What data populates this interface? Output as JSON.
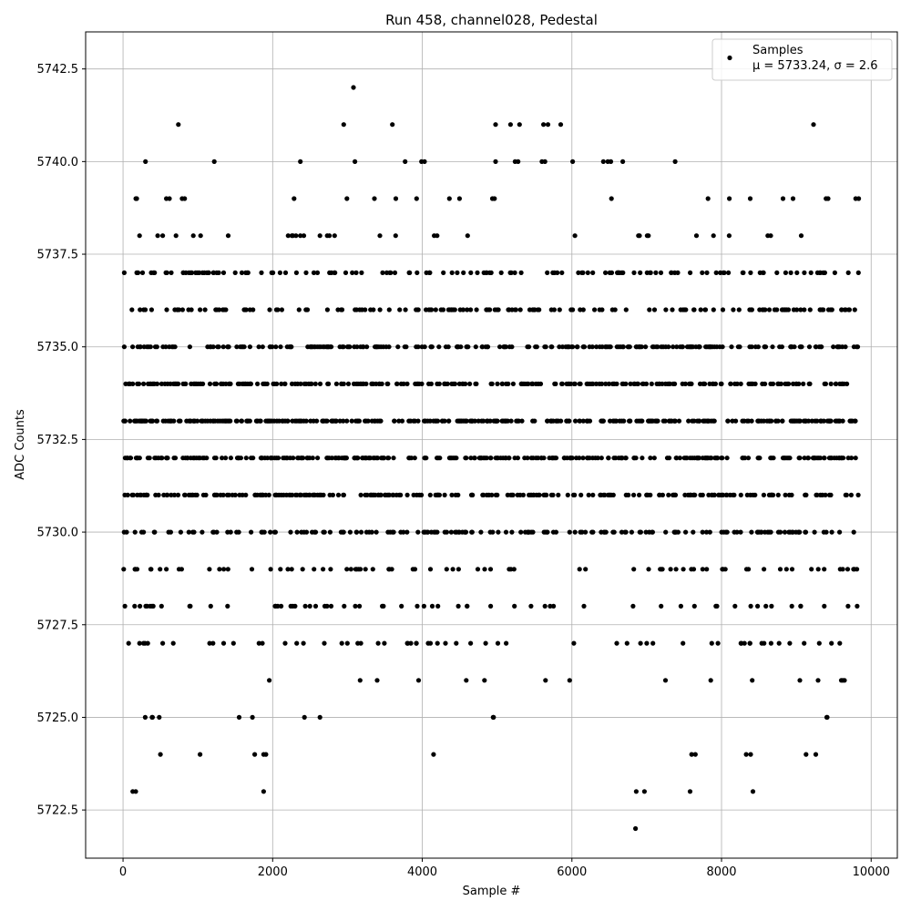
{
  "chart_data": {
    "type": "scatter",
    "title": "Run 458, channel028, Pedestal",
    "xlabel": "Sample #",
    "ylabel": "ADC Counts",
    "xlim": [
      -500,
      10350
    ],
    "ylim": [
      5721.2,
      5743.5
    ],
    "xticks": [
      0,
      2000,
      4000,
      6000,
      8000,
      10000
    ],
    "xtick_labels": [
      "0",
      "2000",
      "4000",
      "6000",
      "8000",
      "10000"
    ],
    "yticks": [
      5722.5,
      5725.0,
      5727.5,
      5730.0,
      5732.5,
      5735.0,
      5737.5,
      5740.0,
      5742.5
    ],
    "ytick_labels": [
      "5722.5",
      "5725.0",
      "5727.5",
      "5730.0",
      "5732.5",
      "5735.0",
      "5737.5",
      "5740.0",
      "5742.5"
    ],
    "grid": true,
    "legend": {
      "position": "top-right",
      "series_label": "Samples",
      "stats_label": "μ = 5733.24, σ = 2.6"
    },
    "series": [
      {
        "name": "Samples",
        "color": "#000000",
        "x_range": [
          0,
          9830
        ],
        "n_samples": 9831,
        "mean": 5733.24,
        "sigma": 2.6,
        "points": [
          [
            3080,
            5742
          ],
          [
            740,
            5741
          ],
          [
            2950,
            5741
          ],
          [
            3600,
            5741
          ],
          [
            4980,
            5741
          ],
          [
            5180,
            5741
          ],
          [
            5300,
            5741
          ],
          [
            5620,
            5741
          ],
          [
            5680,
            5741
          ],
          [
            5850,
            5741
          ],
          [
            9230,
            5741
          ],
          [
            300,
            5740
          ],
          [
            1220,
            5740
          ],
          [
            2370,
            5740
          ],
          [
            3100,
            5740
          ],
          [
            3770,
            5740
          ],
          [
            3990,
            5740
          ],
          [
            4030,
            5740
          ],
          [
            4980,
            5740
          ],
          [
            5240,
            5740
          ],
          [
            5280,
            5740
          ],
          [
            5600,
            5740
          ],
          [
            5640,
            5740
          ],
          [
            6010,
            5740
          ],
          [
            6420,
            5740
          ],
          [
            6480,
            5740
          ],
          [
            6520,
            5740
          ],
          [
            6680,
            5740
          ],
          [
            7380,
            5740
          ],
          [
            6850,
            5722
          ],
          [
            130,
            5723
          ],
          [
            170,
            5723
          ],
          [
            1880,
            5723
          ],
          [
            6860,
            5723
          ],
          [
            6970,
            5723
          ],
          [
            7580,
            5723
          ],
          [
            8420,
            5723
          ],
          [
            500,
            5724
          ],
          [
            1030,
            5724
          ],
          [
            1760,
            5724
          ],
          [
            1880,
            5724
          ],
          [
            1910,
            5724
          ],
          [
            4150,
            5724
          ],
          [
            7600,
            5724
          ],
          [
            7650,
            5724
          ],
          [
            8330,
            5724
          ],
          [
            8390,
            5724
          ],
          [
            9130,
            5724
          ],
          [
            9260,
            5724
          ]
        ],
        "band_levels": [
          5725,
          5726,
          5727,
          5728,
          5729,
          5730,
          5731,
          5732,
          5733,
          5734,
          5735,
          5736,
          5737,
          5738,
          5739
        ],
        "band_density": [
          0.012,
          0.016,
          0.03,
          0.045,
          0.055,
          0.12,
          0.16,
          0.19,
          0.21,
          0.2,
          0.17,
          0.12,
          0.09,
          0.03,
          0.025
        ]
      }
    ]
  }
}
